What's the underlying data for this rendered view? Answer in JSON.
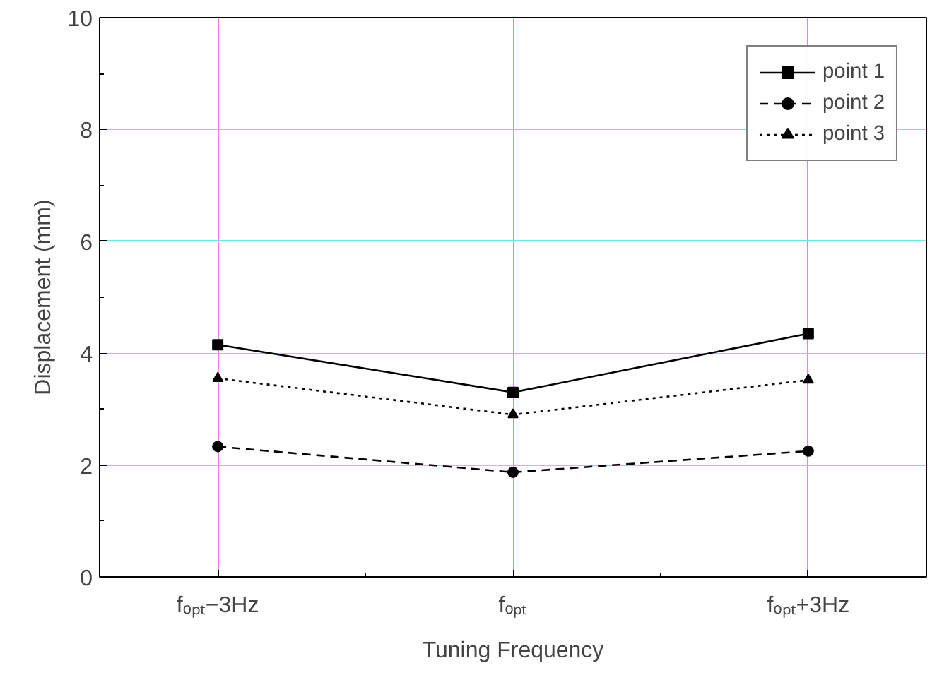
{
  "chart_data": {
    "type": "line",
    "xlabel": "Tuning Frequency",
    "ylabel": "Displacement (mm)",
    "categories": [
      "fₒₚₜ−3Hz",
      "fₒₚₜ",
      "fₒₚₜ+3Hz"
    ],
    "series": [
      {
        "name": "point 1",
        "color": "#000000",
        "values": [
          4.15,
          3.3,
          4.35
        ],
        "marker": "square",
        "line_style": "solid"
      },
      {
        "name": "point 2",
        "color": "#000000",
        "values": [
          2.33,
          1.87,
          2.25
        ],
        "marker": "circle",
        "line_style": "dashed"
      },
      {
        "name": "point 3",
        "color": "#000000",
        "values": [
          3.55,
          2.9,
          3.52
        ],
        "marker": "triangle",
        "line_style": "dotted"
      }
    ],
    "ylim": [
      0,
      10
    ],
    "yticks": [
      0,
      2,
      4,
      6,
      8,
      10
    ],
    "grid": true,
    "legend": "top right"
  }
}
